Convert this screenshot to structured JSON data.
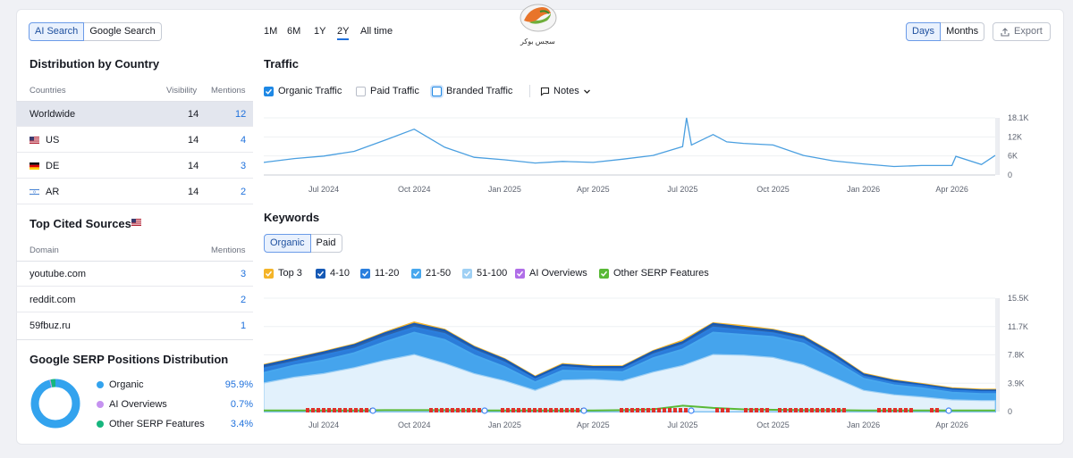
{
  "source_toggle": {
    "ai_search": "AI Search",
    "google_search": "Google Search"
  },
  "country": {
    "title": "Distribution by Country",
    "col_countries": "Countries",
    "col_visibility": "Visibility",
    "col_mentions": "Mentions",
    "rows": [
      {
        "name": "Worldwide",
        "visibility": "14",
        "mentions": "12",
        "flag": ""
      },
      {
        "name": "US",
        "visibility": "14",
        "mentions": "4",
        "flag": "us-flag-icon"
      },
      {
        "name": "DE",
        "visibility": "14",
        "mentions": "3",
        "flag": "de-flag-icon"
      },
      {
        "name": "AR",
        "visibility": "14",
        "mentions": "2",
        "flag": "ar-flag-icon"
      }
    ]
  },
  "cited": {
    "title": "Top Cited Sources",
    "col_domain": "Domain",
    "col_mentions": "Mentions",
    "rows": [
      {
        "domain": "youtube.com",
        "mentions": "3"
      },
      {
        "domain": "reddit.com",
        "mentions": "2"
      },
      {
        "domain": "59fbuz.ru",
        "mentions": "1"
      }
    ]
  },
  "serp": {
    "title": "Google SERP Positions Distribution",
    "items": [
      {
        "label": "Organic",
        "pct": "95.9%",
        "color": "#33a3ee",
        "value": 95.9
      },
      {
        "label": "AI Overviews",
        "pct": "0.7%",
        "color": "#c592f0",
        "value": 0.7
      },
      {
        "label": "Other SERP Features",
        "pct": "3.4%",
        "color": "#17b67e",
        "value": 3.4
      }
    ]
  },
  "ranges": [
    "1M",
    "6M",
    "1Y",
    "2Y",
    "All time"
  ],
  "active_range": "2Y",
  "period": {
    "days": "Days",
    "months": "Months",
    "active": "Days"
  },
  "export_label": "Export",
  "logo_text": "سجس بوکر",
  "traffic": {
    "title": "Traffic",
    "options": [
      {
        "label": "Organic Traffic",
        "checked": true,
        "color": "#1e88e5"
      },
      {
        "label": "Paid Traffic",
        "checked": false,
        "color": "#b8bdc8"
      },
      {
        "label": "Branded Traffic",
        "checked": false,
        "color": "#1e88e5"
      }
    ],
    "notes_label": "Notes",
    "y_ticks": [
      "18.1K",
      "12K",
      "6K",
      "0"
    ]
  },
  "x_ticks": [
    "Jul 2024",
    "Oct 2024",
    "Jan 2025",
    "Apr 2025",
    "Jul 2025",
    "Oct 2025",
    "Jan 2026",
    "Apr 2026"
  ],
  "keywords": {
    "title": "Keywords",
    "tabs": [
      "Organic",
      "Paid"
    ],
    "active_tab": "Organic",
    "legend": [
      {
        "label": "Top 3",
        "color": "#f4b428"
      },
      {
        "label": "4-10",
        "color": "#1659b5"
      },
      {
        "label": "11-20",
        "color": "#2b7fde"
      },
      {
        "label": "21-50",
        "color": "#48a8ee"
      },
      {
        "label": "51-100",
        "color": "#9fd0f4"
      },
      {
        "label": "AI Overviews",
        "color": "#b06ee8"
      },
      {
        "label": "Other SERP Features",
        "color": "#59b936"
      }
    ],
    "y_ticks": [
      "15.5K",
      "11.7K",
      "7.8K",
      "3.9K",
      "0"
    ]
  },
  "chart_data": [
    {
      "type": "line",
      "title": "Traffic",
      "series": [
        {
          "name": "Organic Traffic",
          "color": "#4a9fe0",
          "x": [
            "2024-05-01",
            "2024-06-01",
            "2024-07-01",
            "2024-08-01",
            "2024-09-01",
            "2024-10-01",
            "2024-11-01",
            "2024-12-01",
            "2025-01-01",
            "2025-02-01",
            "2025-03-01",
            "2025-04-01",
            "2025-05-01",
            "2025-06-01",
            "2025-07-01",
            "2025-07-05",
            "2025-07-10",
            "2025-08-01",
            "2025-08-15",
            "2025-09-01",
            "2025-10-01",
            "2025-11-01",
            "2025-12-01",
            "2026-01-01",
            "2026-02-01",
            "2026-03-01",
            "2026-04-01",
            "2026-04-05",
            "2026-05-01",
            "2026-05-15"
          ],
          "values": [
            4000,
            5200,
            6000,
            7500,
            11000,
            14500,
            8800,
            5600,
            4800,
            3800,
            4300,
            4000,
            5000,
            6200,
            9000,
            18100,
            9500,
            12800,
            10500,
            10000,
            9500,
            6200,
            4500,
            3500,
            2700,
            3000,
            3000,
            5900,
            3300,
            6200
          ]
        }
      ],
      "ylim": [
        0,
        18100
      ],
      "y_ticks": [
        "18.1K",
        "12K",
        "6K",
        "0"
      ],
      "x_ticks": [
        "Jul 2024",
        "Oct 2024",
        "Jan 2025",
        "Apr 2025",
        "Jul 2025",
        "Oct 2025",
        "Jan 2026",
        "Apr 2026"
      ]
    },
    {
      "type": "area",
      "title": "Keywords",
      "x": [
        "2024-05-01",
        "2024-06-01",
        "2024-07-01",
        "2024-08-01",
        "2024-09-01",
        "2024-10-01",
        "2024-11-01",
        "2024-12-01",
        "2025-01-01",
        "2025-02-01",
        "2025-03-01",
        "2025-04-01",
        "2025-05-01",
        "2025-06-01",
        "2025-07-01",
        "2025-08-01",
        "2025-09-01",
        "2025-10-01",
        "2025-11-01",
        "2025-12-01",
        "2026-01-01",
        "2026-02-01",
        "2026-03-01",
        "2026-04-01",
        "2026-05-01",
        "2026-05-15"
      ],
      "series": [
        {
          "name": "51-100",
          "color": "#9fd0f4",
          "values": [
            3900,
            4700,
            5200,
            6000,
            7000,
            7800,
            6600,
            5200,
            4200,
            2900,
            4300,
            4400,
            4200,
            5400,
            6300,
            7800,
            7700,
            7400,
            6400,
            4700,
            2900,
            2300,
            2000,
            1600,
            1500,
            1500
          ]
        },
        {
          "name": "21-50",
          "color": "#48a8ee",
          "values": [
            5300,
            6300,
            7000,
            8000,
            9500,
            10800,
            9800,
            7700,
            6100,
            4000,
            5600,
            5500,
            5400,
            7300,
            8500,
            10800,
            10500,
            10200,
            9300,
            7000,
            4500,
            3600,
            3200,
            2600,
            2400,
            2400
          ]
        },
        {
          "name": "11-20",
          "color": "#2b7fde",
          "values": [
            5900,
            6800,
            7700,
            8600,
            10200,
            11500,
            10600,
            8400,
            6700,
            4400,
            6100,
            5800,
            5800,
            7800,
            9100,
            11500,
            11100,
            10700,
            9800,
            7500,
            4800,
            3900,
            3500,
            2900,
            2700,
            2700
          ]
        },
        {
          "name": "4-10",
          "color": "#1659b5",
          "values": [
            6300,
            7200,
            8100,
            9100,
            10700,
            12000,
            11100,
            8800,
            7100,
            4700,
            6400,
            6100,
            6100,
            8200,
            9500,
            12000,
            11500,
            11100,
            10200,
            7900,
            5100,
            4200,
            3700,
            3100,
            2900,
            2900
          ]
        },
        {
          "name": "Top 3",
          "color": "#f4b428",
          "values": [
            6400,
            7300,
            8200,
            9200,
            10800,
            12200,
            11200,
            8900,
            7200,
            4800,
            6500,
            6200,
            6200,
            8300,
            9700,
            12100,
            11700,
            11200,
            10300,
            8000,
            5200,
            4300,
            3800,
            3200,
            3000,
            3000
          ]
        },
        {
          "name": "Other SERP Features",
          "color": "#59b936",
          "values": [
            150,
            150,
            150,
            150,
            200,
            200,
            200,
            150,
            150,
            150,
            150,
            150,
            200,
            300,
            800,
            500,
            300,
            250,
            200,
            200,
            150,
            150,
            150,
            150,
            150,
            150
          ]
        }
      ],
      "ylim": [
        0,
        15500
      ],
      "y_ticks": [
        "15.5K",
        "11.7K",
        "7.8K",
        "3.9K",
        "0"
      ],
      "x_ticks": [
        "Jul 2024",
        "Oct 2024",
        "Jan 2025",
        "Apr 2025",
        "Jul 2025",
        "Oct 2025",
        "Jan 2026",
        "Apr 2026"
      ]
    }
  ]
}
